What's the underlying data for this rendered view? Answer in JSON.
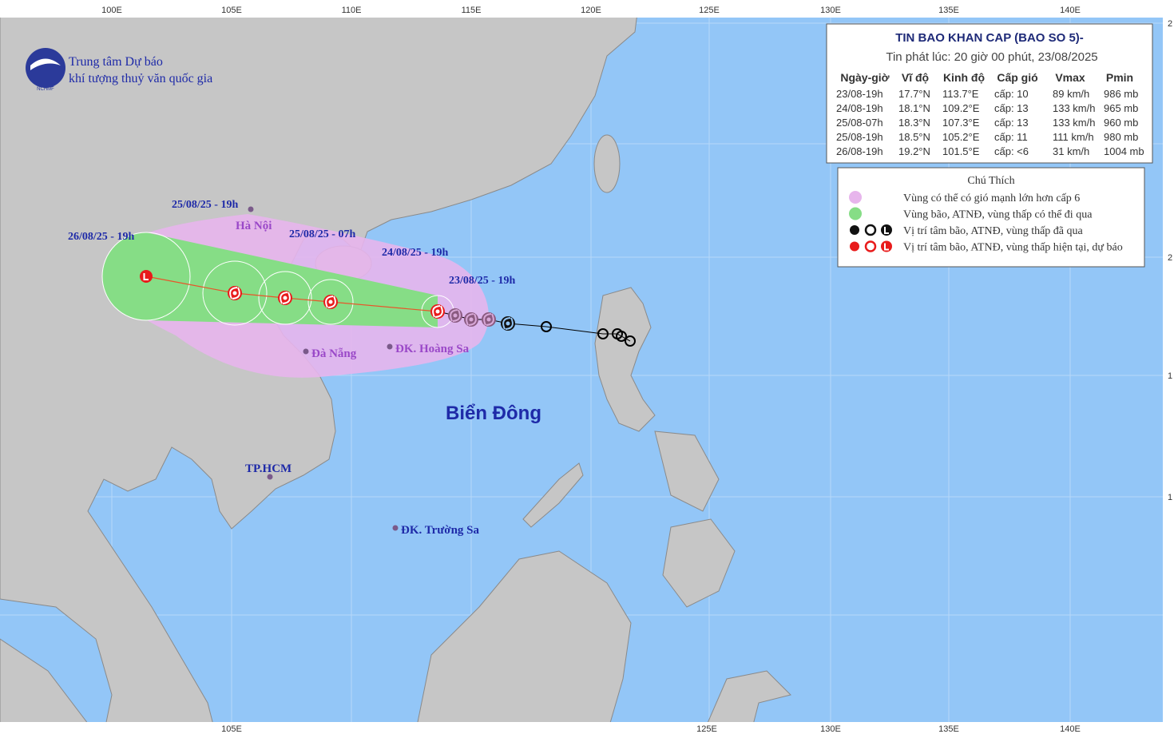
{
  "header": {
    "org_line1": "Trung tâm Dự báo",
    "org_line2": "khí tượng thuỷ văn quốc gia",
    "logo_text": "NCHMF"
  },
  "axes": {
    "top": [
      "100E",
      "105E",
      "110E",
      "115E",
      "120E",
      "125E",
      "130E",
      "135E",
      "140E"
    ],
    "bottom": [
      "105E",
      "125E",
      "130E",
      "135E",
      "140E"
    ],
    "right": [
      "2",
      "2",
      "1",
      "1"
    ]
  },
  "forecast_labels": [
    "26/08/25 - 19h",
    "25/08/25 - 19h",
    "25/08/25 - 07h",
    "24/08/25 - 19h",
    "23/08/25 - 19h"
  ],
  "places": [
    "Hà Nội",
    "Đà Nẵng",
    "ĐK. Hoàng Sa",
    "TP.HCM",
    "ĐK. Trường Sa"
  ],
  "sea_label": "Biển Đông",
  "bulletin": {
    "title": "TIN BAO KHAN CAP (BAO SO 5)-",
    "issued": "Tin phát lúc: 20 giờ 00 phút, 23/08/2025",
    "columns": [
      "Ngày-giờ",
      "Vĩ độ",
      "Kinh độ",
      "Cấp gió",
      "Vmax",
      "Pmin"
    ],
    "rows": [
      [
        "23/08-19h",
        "17.7°N",
        "113.7°E",
        "cấp: 10",
        "89 km/h",
        "986 mb"
      ],
      [
        "24/08-19h",
        "18.1°N",
        "109.2°E",
        "cấp: 13",
        "133 km/h",
        "965 mb"
      ],
      [
        "25/08-07h",
        "18.3°N",
        "107.3°E",
        "cấp: 13",
        "133 km/h",
        "960 mb"
      ],
      [
        "25/08-19h",
        "18.5°N",
        "105.2°E",
        "cấp: 11",
        "111 km/h",
        "980 mb"
      ],
      [
        "26/08-19h",
        "19.2°N",
        "101.5°E",
        "cấp: <6",
        "31 km/h",
        "1004 mb"
      ]
    ]
  },
  "legend": {
    "title": "Chú Thích",
    "items": [
      "Vùng có thể có gió mạnh lớn hơn cấp 6",
      "Vùng bão, ATNĐ, vùng thấp có thể đi qua",
      "Vị trí tâm bão, ATNĐ, vùng thấp đã qua",
      "Vị trí tâm bão, ATNĐ, vùng thấp hiện tại, dự báo"
    ]
  }
}
